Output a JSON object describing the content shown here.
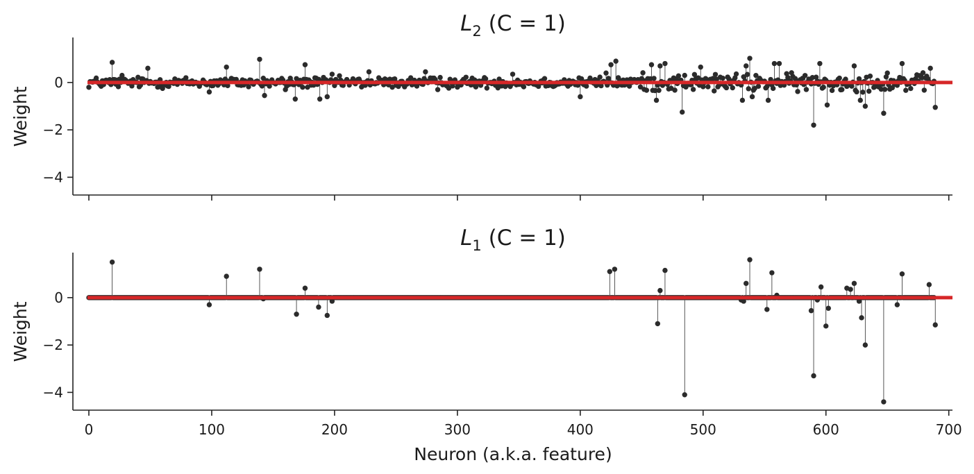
{
  "chart_data": [
    {
      "type": "scatter",
      "subtype": "stem",
      "title_symbol": "L",
      "title_subscript": "2",
      "title_suffix": " (C = 1)",
      "xlabel": "",
      "ylabel": "Weight",
      "xlim": [
        -13,
        703
      ],
      "ylim": [
        -4.75,
        1.9
      ],
      "xticks": [
        0,
        100,
        200,
        300,
        400,
        500,
        600,
        700
      ],
      "xtick_labels_shown": false,
      "yticks": [
        -4,
        -2,
        0
      ],
      "ytick_labels": [
        "−4",
        "−2",
        "0"
      ],
      "baseline_color": "#d62728",
      "point_color": "#2b2b2b",
      "n_points": 690,
      "highlight_points": [
        {
          "x": 19,
          "y": 0.85
        },
        {
          "x": 27,
          "y": 0.3
        },
        {
          "x": 48,
          "y": 0.6
        },
        {
          "x": 98,
          "y": -0.4
        },
        {
          "x": 112,
          "y": 0.65
        },
        {
          "x": 139,
          "y": 0.98
        },
        {
          "x": 143,
          "y": -0.55
        },
        {
          "x": 160,
          "y": -0.3
        },
        {
          "x": 168,
          "y": -0.7
        },
        {
          "x": 176,
          "y": 0.75
        },
        {
          "x": 188,
          "y": -0.7
        },
        {
          "x": 194,
          "y": -0.6
        },
        {
          "x": 198,
          "y": 0.35
        },
        {
          "x": 228,
          "y": 0.45
        },
        {
          "x": 274,
          "y": 0.45
        },
        {
          "x": 284,
          "y": -0.3
        },
        {
          "x": 345,
          "y": 0.35
        },
        {
          "x": 400,
          "y": -0.6
        },
        {
          "x": 421,
          "y": 0.4
        },
        {
          "x": 425,
          "y": 0.75
        },
        {
          "x": 429,
          "y": 0.9
        },
        {
          "x": 458,
          "y": 0.75
        },
        {
          "x": 462,
          "y": -0.75
        },
        {
          "x": 465,
          "y": 0.7
        },
        {
          "x": 469,
          "y": 0.8
        },
        {
          "x": 483,
          "y": -1.25
        },
        {
          "x": 485,
          "y": 0.3
        },
        {
          "x": 498,
          "y": 0.65
        },
        {
          "x": 532,
          "y": -0.75
        },
        {
          "x": 535,
          "y": 0.7
        },
        {
          "x": 538,
          "y": 1.02
        },
        {
          "x": 540,
          "y": -0.6
        },
        {
          "x": 553,
          "y": -0.75
        },
        {
          "x": 558,
          "y": 0.8
        },
        {
          "x": 562,
          "y": 0.8
        },
        {
          "x": 590,
          "y": -1.8
        },
        {
          "x": 595,
          "y": 0.8
        },
        {
          "x": 601,
          "y": -0.95
        },
        {
          "x": 623,
          "y": 0.7
        },
        {
          "x": 628,
          "y": -0.75
        },
        {
          "x": 632,
          "y": -1.0
        },
        {
          "x": 647,
          "y": -1.3
        },
        {
          "x": 650,
          "y": 0.4
        },
        {
          "x": 662,
          "y": 0.8
        },
        {
          "x": 685,
          "y": 0.6
        },
        {
          "x": 689,
          "y": -1.05
        }
      ]
    },
    {
      "type": "scatter",
      "subtype": "stem",
      "title_symbol": "L",
      "title_subscript": "1",
      "title_suffix": " (C = 1)",
      "xlabel": "Neuron (a.k.a. feature)",
      "ylabel": "Weight",
      "xlim": [
        -13,
        703
      ],
      "ylim": [
        -4.75,
        1.9
      ],
      "xticks": [
        0,
        100,
        200,
        300,
        400,
        500,
        600,
        700
      ],
      "xtick_labels": [
        "0",
        "100",
        "200",
        "300",
        "400",
        "500",
        "600",
        "700"
      ],
      "yticks": [
        -4,
        -2,
        0
      ],
      "ytick_labels": [
        "−4",
        "−2",
        "0"
      ],
      "baseline_color": "#d62728",
      "point_color": "#2b2b2b",
      "n_points": 690,
      "nonzero_points": [
        {
          "x": 19,
          "y": 1.5
        },
        {
          "x": 98,
          "y": -0.3
        },
        {
          "x": 112,
          "y": 0.9
        },
        {
          "x": 139,
          "y": 1.2
        },
        {
          "x": 142,
          "y": -0.05
        },
        {
          "x": 169,
          "y": -0.7
        },
        {
          "x": 176,
          "y": 0.4
        },
        {
          "x": 187,
          "y": -0.4
        },
        {
          "x": 194,
          "y": -0.75
        },
        {
          "x": 198,
          "y": -0.15
        },
        {
          "x": 424,
          "y": 1.1
        },
        {
          "x": 428,
          "y": 1.2
        },
        {
          "x": 463,
          "y": -1.1
        },
        {
          "x": 465,
          "y": 0.3
        },
        {
          "x": 469,
          "y": 1.15
        },
        {
          "x": 485,
          "y": -4.1
        },
        {
          "x": 531,
          "y": -0.1
        },
        {
          "x": 533,
          "y": -0.15
        },
        {
          "x": 535,
          "y": 0.6
        },
        {
          "x": 538,
          "y": 1.6
        },
        {
          "x": 552,
          "y": -0.5
        },
        {
          "x": 556,
          "y": 1.05
        },
        {
          "x": 560,
          "y": 0.1
        },
        {
          "x": 588,
          "y": -0.55
        },
        {
          "x": 590,
          "y": -3.3
        },
        {
          "x": 593,
          "y": -0.1
        },
        {
          "x": 596,
          "y": 0.45
        },
        {
          "x": 600,
          "y": -1.2
        },
        {
          "x": 602,
          "y": -0.45
        },
        {
          "x": 617,
          "y": 0.4
        },
        {
          "x": 620,
          "y": 0.35
        },
        {
          "x": 623,
          "y": 0.6
        },
        {
          "x": 627,
          "y": -0.15
        },
        {
          "x": 629,
          "y": -0.85
        },
        {
          "x": 632,
          "y": -2.0
        },
        {
          "x": 647,
          "y": -4.4
        },
        {
          "x": 658,
          "y": -0.3
        },
        {
          "x": 662,
          "y": 1.0
        },
        {
          "x": 684,
          "y": 0.55
        },
        {
          "x": 689,
          "y": -1.15
        }
      ]
    }
  ]
}
